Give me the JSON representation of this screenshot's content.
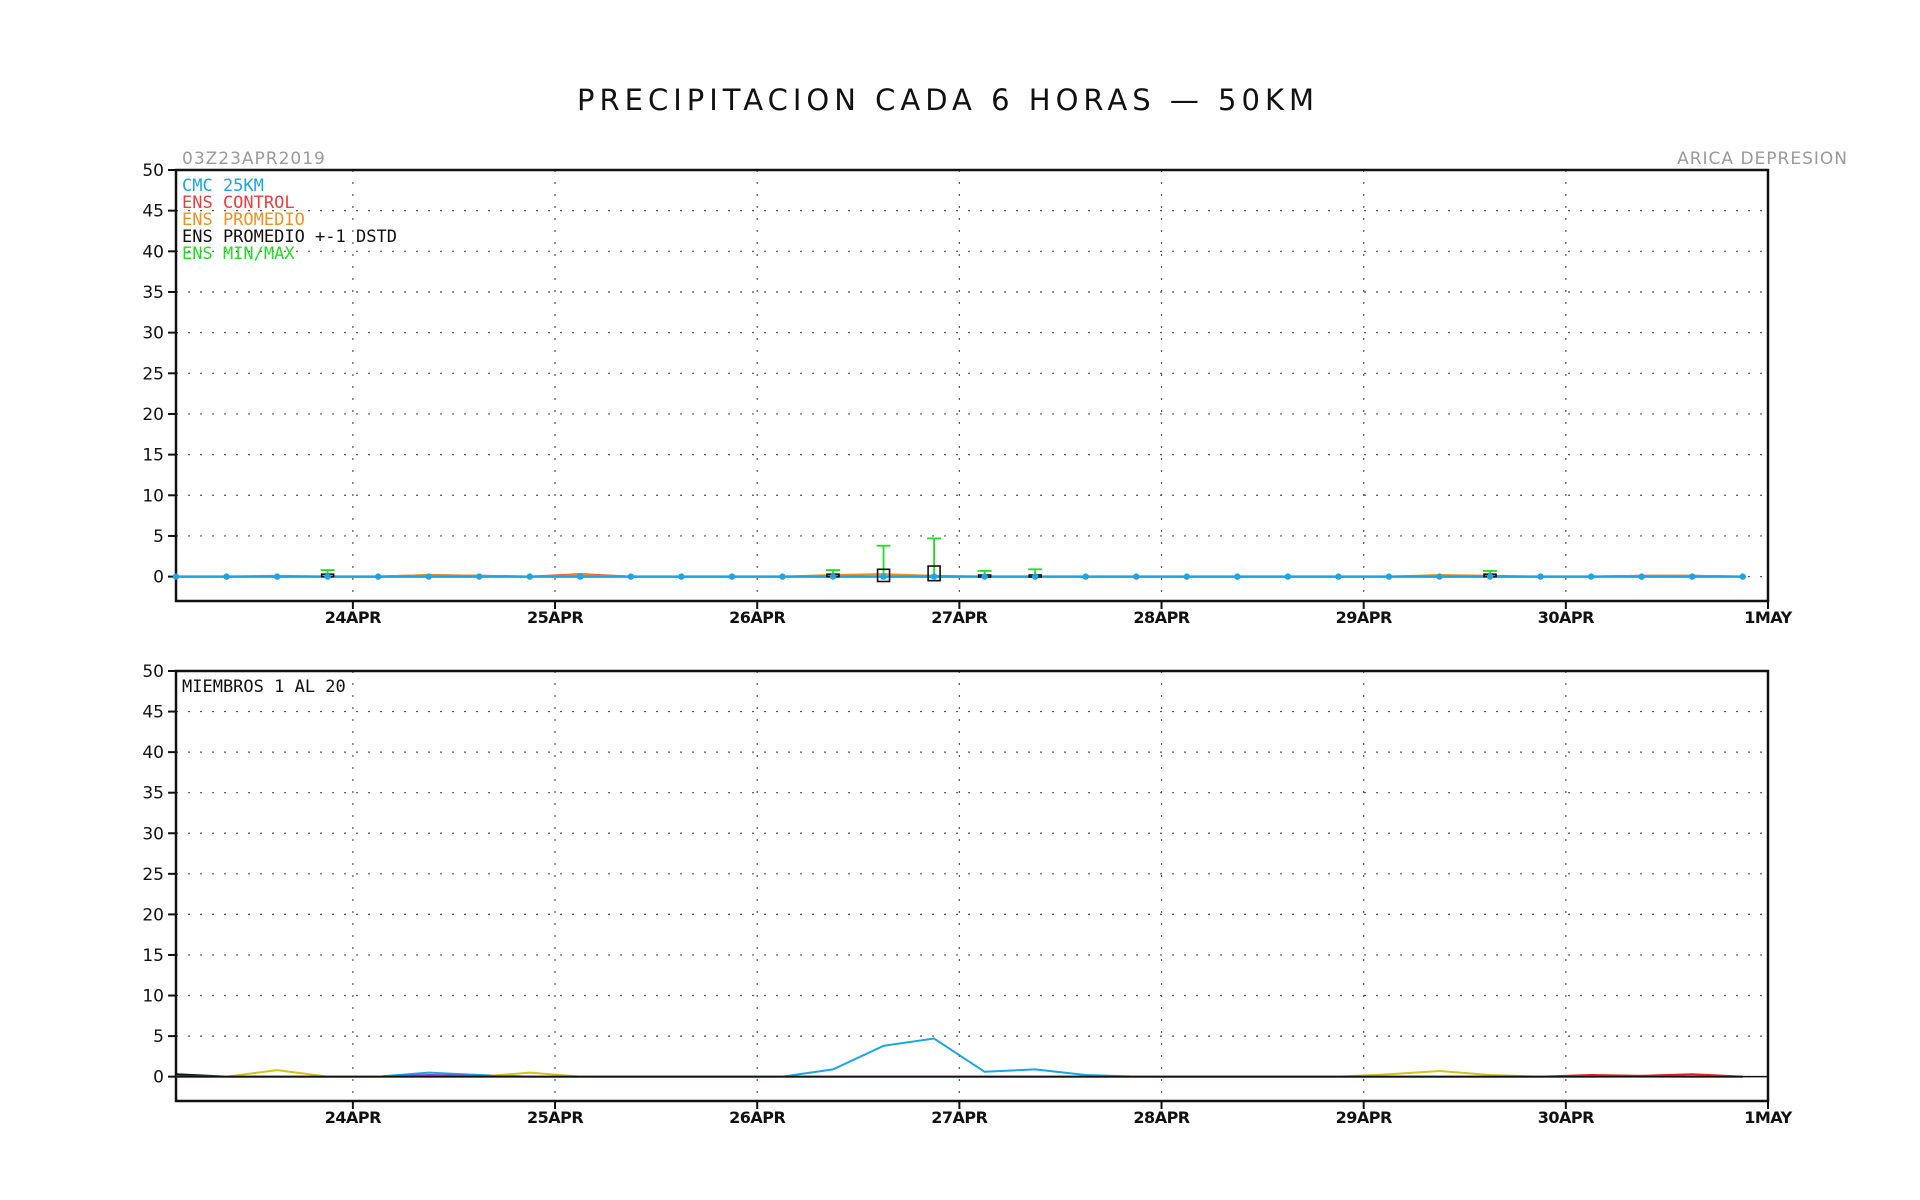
{
  "page": {
    "title": "PRECIPITACION CADA 6 HORAS — 50KM",
    "run_label": "03Z23APR2019",
    "location_label": "ARICA DEPRESION"
  },
  "colors": {
    "cmc": "#1aa5e6",
    "control": "#f03c3c",
    "promedio": "#f09020",
    "std": "#111111",
    "minmax": "#22dd22",
    "member_yellow": "#d6c21c",
    "member_purple": "#8a3fd0",
    "member_red": "#e02020",
    "member_black": "#111111"
  },
  "chart_data": [
    {
      "type": "line",
      "panel": "top",
      "ylim": [
        -3,
        50
      ],
      "yticks": [
        0,
        5,
        10,
        15,
        20,
        25,
        30,
        35,
        40,
        45,
        50
      ],
      "xlim": [
        "2019-04-23T03",
        "2019-05-01T00"
      ],
      "xtick_labels": [
        "24APR",
        "25APR",
        "26APR",
        "27APR",
        "28APR",
        "29APR",
        "30APR",
        "1MAY"
      ],
      "grid": true,
      "legend_position": "top-left",
      "legend": [
        {
          "label": "CMC 25KM",
          "color": "cmc"
        },
        {
          "label": "ENS CONTROL",
          "color": "control"
        },
        {
          "label": "ENS PROMEDIO",
          "color": "promedio"
        },
        {
          "label": "ENS PROMEDIO +-1 DSTD",
          "color": "std"
        },
        {
          "label": "ENS MIN/MAX",
          "color": "minmax"
        }
      ],
      "x": [
        "2019-04-23T03",
        "2019-04-23T09",
        "2019-04-23T15",
        "2019-04-23T21",
        "2019-04-24T03",
        "2019-04-24T09",
        "2019-04-24T15",
        "2019-04-24T21",
        "2019-04-25T03",
        "2019-04-25T09",
        "2019-04-25T15",
        "2019-04-25T21",
        "2019-04-26T03",
        "2019-04-26T09",
        "2019-04-26T15",
        "2019-04-26T21",
        "2019-04-27T03",
        "2019-04-27T09",
        "2019-04-27T15",
        "2019-04-27T21",
        "2019-04-28T03",
        "2019-04-28T09",
        "2019-04-28T15",
        "2019-04-28T21",
        "2019-04-29T03",
        "2019-04-29T09",
        "2019-04-29T15",
        "2019-04-29T21",
        "2019-04-30T03",
        "2019-04-30T09",
        "2019-04-30T15",
        "2019-04-30T21"
      ],
      "series": [
        {
          "name": "CMC 25KM",
          "values": [
            0,
            0,
            0,
            0,
            0,
            0,
            0,
            0,
            0,
            0,
            0,
            0,
            0,
            0,
            0,
            0,
            0,
            0,
            0,
            0,
            0,
            0,
            0,
            0,
            0,
            0,
            0,
            0,
            0,
            0,
            0,
            0
          ]
        },
        {
          "name": "ENS CONTROL",
          "values": [
            0,
            0,
            0,
            0,
            0,
            0.2,
            0.1,
            0,
            0.3,
            0,
            0,
            0,
            0,
            0,
            0,
            0,
            0,
            0,
            0,
            0,
            0,
            0,
            0,
            0,
            0,
            0,
            0,
            0,
            0,
            0.1,
            0.1,
            0
          ]
        },
        {
          "name": "ENS PROMEDIO",
          "values": [
            0,
            0,
            0.1,
            0,
            0,
            0.2,
            0.1,
            0,
            0.2,
            0,
            0,
            0,
            0,
            0.2,
            0.3,
            0.1,
            0,
            0,
            0,
            0,
            0,
            0,
            0,
            0,
            0,
            0.2,
            0.1,
            0,
            0,
            0.1,
            0.1,
            0
          ]
        }
      ],
      "boxes": [
        {
          "x": "2019-04-23T21",
          "min": 0,
          "max": 0.8,
          "low": 0,
          "high": 0.3
        },
        {
          "x": "2019-04-26T09",
          "min": 0,
          "max": 0.8,
          "low": 0,
          "high": 0.3
        },
        {
          "x": "2019-04-26T15",
          "min": 0,
          "max": 3.8,
          "low": -0.6,
          "high": 0.9
        },
        {
          "x": "2019-04-26T21",
          "min": 0,
          "max": 4.7,
          "low": -0.5,
          "high": 1.3
        },
        {
          "x": "2019-04-27T03",
          "min": 0,
          "max": 0.7,
          "low": 0,
          "high": 0.2
        },
        {
          "x": "2019-04-27T09",
          "min": 0,
          "max": 0.9,
          "low": 0,
          "high": 0.2
        },
        {
          "x": "2019-04-29T15",
          "min": 0,
          "max": 0.7,
          "low": 0,
          "high": 0.3
        }
      ]
    },
    {
      "type": "line",
      "panel": "bottom",
      "label": "MIEMBROS 1 AL 20",
      "ylim": [
        -3,
        50
      ],
      "yticks": [
        0,
        5,
        10,
        15,
        20,
        25,
        30,
        35,
        40,
        45,
        50
      ],
      "xlim": [
        "2019-04-23T03",
        "2019-05-01T00"
      ],
      "xtick_labels": [
        "24APR",
        "25APR",
        "26APR",
        "27APR",
        "28APR",
        "29APR",
        "30APR",
        "1MAY"
      ],
      "grid": true,
      "x": [
        "2019-04-23T03",
        "2019-04-23T09",
        "2019-04-23T15",
        "2019-04-23T21",
        "2019-04-24T03",
        "2019-04-24T09",
        "2019-04-24T15",
        "2019-04-24T21",
        "2019-04-25T03",
        "2019-04-25T09",
        "2019-04-25T15",
        "2019-04-25T21",
        "2019-04-26T03",
        "2019-04-26T09",
        "2019-04-26T15",
        "2019-04-26T21",
        "2019-04-27T03",
        "2019-04-27T09",
        "2019-04-27T15",
        "2019-04-27T21",
        "2019-04-28T03",
        "2019-04-28T09",
        "2019-04-28T15",
        "2019-04-28T21",
        "2019-04-29T03",
        "2019-04-29T09",
        "2019-04-29T15",
        "2019-04-29T21",
        "2019-04-30T03",
        "2019-04-30T09",
        "2019-04-30T15",
        "2019-04-30T21"
      ],
      "series": [
        {
          "color": "member_black",
          "values": [
            0.3,
            0,
            0,
            0,
            0,
            0,
            0,
            0,
            0,
            0,
            0,
            0,
            0,
            0,
            0,
            0,
            0,
            0,
            0,
            0,
            0,
            0,
            0,
            0,
            0,
            0,
            0,
            0,
            0,
            0,
            0,
            0
          ]
        },
        {
          "color": "cmc",
          "values": [
            0,
            0,
            0,
            0,
            0,
            0.5,
            0.2,
            0,
            0,
            0,
            0,
            0,
            0,
            0.9,
            3.8,
            4.7,
            0.6,
            0.9,
            0.2,
            0,
            0,
            0,
            0,
            0,
            0,
            0,
            0,
            0,
            0,
            0,
            0,
            0
          ]
        },
        {
          "color": "member_yellow",
          "values": [
            0,
            0,
            0.8,
            0,
            0,
            0,
            0,
            0.5,
            0,
            0,
            0,
            0,
            0,
            0,
            0,
            0,
            0,
            0,
            0,
            0,
            0,
            0,
            0,
            0,
            0.3,
            0.7,
            0.2,
            0,
            0,
            0,
            0,
            0
          ]
        },
        {
          "color": "member_purple",
          "values": [
            0,
            0,
            0,
            0,
            0,
            0.2,
            0.1,
            0,
            0,
            0,
            0,
            0,
            0,
            0,
            0,
            0,
            0,
            0,
            0,
            0,
            0,
            0,
            0,
            0,
            0,
            0,
            0,
            0,
            0,
            0.1,
            0,
            0
          ]
        },
        {
          "color": "member_red",
          "values": [
            0,
            0,
            0,
            0,
            0,
            0,
            0,
            0,
            0,
            0,
            0,
            0,
            0,
            0,
            0,
            0,
            0,
            0,
            0,
            0,
            0,
            0,
            0,
            0,
            0,
            0,
            0,
            0,
            0.2,
            0.1,
            0.3,
            0
          ]
        }
      ]
    }
  ]
}
